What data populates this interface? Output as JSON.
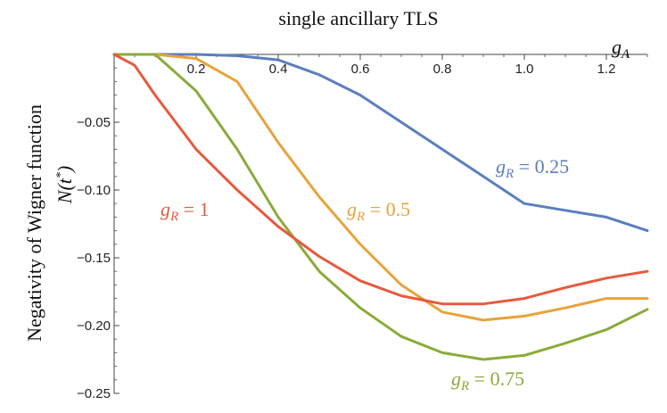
{
  "chart_data": {
    "type": "line",
    "title": "single ancillary TLS",
    "xlabel": "g_A",
    "ylabel": "Negativity of Wigner function",
    "ylabel_math": "N(t*)",
    "xlim": [
      0,
      1.3
    ],
    "ylim": [
      -0.25,
      0
    ],
    "x_ticks": [
      0.2,
      0.4,
      0.6,
      0.8,
      1.0,
      1.2
    ],
    "x_tick_labels": [
      "0.2",
      "0.4",
      "0.6",
      "0.8",
      "1.0",
      "1.2"
    ],
    "y_ticks": [
      -0.05,
      -0.1,
      -0.15,
      -0.2,
      -0.25
    ],
    "y_tick_labels": [
      "−0.05",
      "−0.10",
      "−0.15",
      "−0.20",
      "−0.25"
    ],
    "x_axis_position": "top",
    "grid": false,
    "series": [
      {
        "name": "g_R = 0.25",
        "label_var": "g",
        "label_sub": "R",
        "label_value": " = 0.25",
        "color": "#5b7ec0",
        "x": [
          0,
          0.1,
          0.2,
          0.3,
          0.4,
          0.5,
          0.6,
          0.7,
          0.8,
          0.9,
          1.0,
          1.1,
          1.2,
          1.3
        ],
        "values": [
          0,
          0,
          0,
          -0.001,
          -0.004,
          -0.015,
          -0.03,
          -0.05,
          -0.07,
          -0.09,
          -0.11,
          -0.115,
          -0.12,
          -0.13
        ]
      },
      {
        "name": "g_R = 0.5",
        "label_var": "g",
        "label_sub": "R",
        "label_value": " = 0.5",
        "color": "#e8a33a",
        "x": [
          0,
          0.1,
          0.2,
          0.3,
          0.4,
          0.5,
          0.6,
          0.7,
          0.8,
          0.9,
          1.0,
          1.1,
          1.2,
          1.3
        ],
        "values": [
          0,
          0,
          -0.003,
          -0.02,
          -0.065,
          -0.105,
          -0.14,
          -0.17,
          -0.19,
          -0.196,
          -0.193,
          -0.187,
          -0.18,
          -0.18
        ]
      },
      {
        "name": "g_R = 0.75",
        "label_var": "g",
        "label_sub": "R",
        "label_value": " = 0.75",
        "color": "#8aab3a",
        "x": [
          0,
          0.1,
          0.2,
          0.3,
          0.4,
          0.5,
          0.6,
          0.7,
          0.8,
          0.9,
          1.0,
          1.1,
          1.2,
          1.3
        ],
        "values": [
          0,
          0,
          -0.027,
          -0.07,
          -0.12,
          -0.16,
          -0.187,
          -0.208,
          -0.22,
          -0.225,
          -0.222,
          -0.213,
          -0.203,
          -0.188
        ]
      },
      {
        "name": "g_R = 1",
        "label_var": "g",
        "label_sub": "R",
        "label_value": " = 1",
        "color": "#e65a3e",
        "x": [
          0,
          0.05,
          0.1,
          0.2,
          0.3,
          0.4,
          0.5,
          0.6,
          0.7,
          0.8,
          0.9,
          1.0,
          1.1,
          1.2,
          1.3
        ],
        "values": [
          0,
          -0.008,
          -0.03,
          -0.07,
          -0.1,
          -0.127,
          -0.149,
          -0.167,
          -0.178,
          -0.184,
          -0.184,
          -0.18,
          -0.172,
          -0.165,
          -0.16
        ]
      }
    ]
  }
}
